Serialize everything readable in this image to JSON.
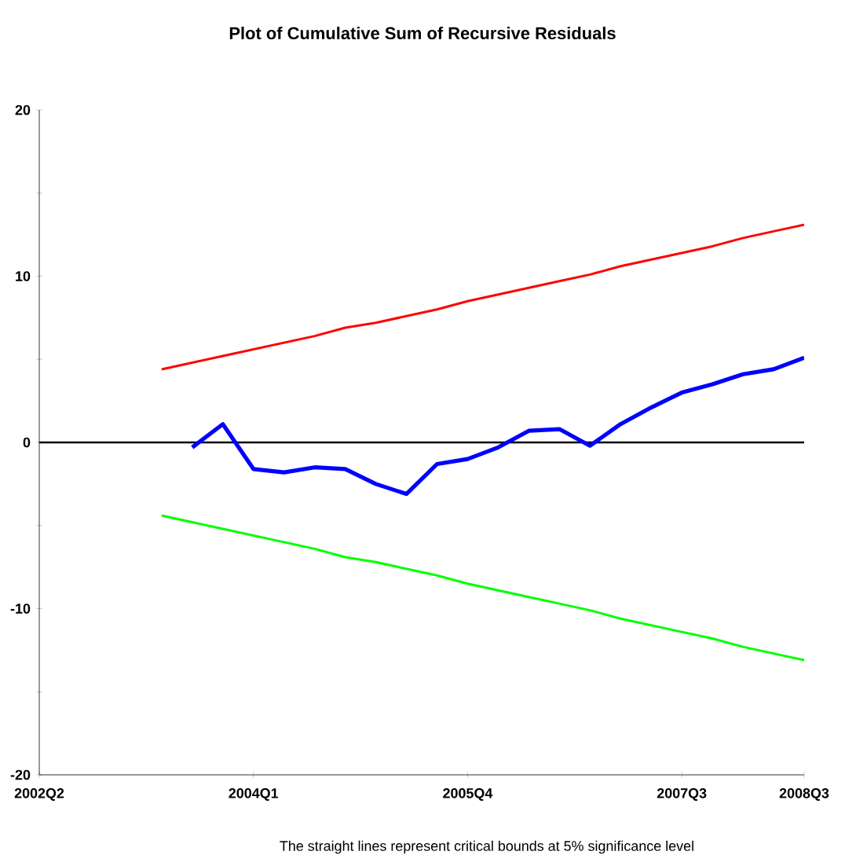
{
  "chart_data": {
    "type": "line",
    "title": "Plot of Cumulative Sum of Recursive Residuals",
    "annotations": [
      "The straight lines represent critical bounds at 5% significance level"
    ],
    "categories": [
      "2002Q2",
      null,
      null,
      null,
      null,
      null,
      null,
      "2004Q1",
      null,
      null,
      null,
      null,
      null,
      null,
      "2005Q4",
      null,
      null,
      null,
      null,
      null,
      null,
      "2007Q3",
      null,
      null,
      null,
      "2008Q3"
    ],
    "ylim": [
      -20,
      20
    ],
    "yticks": [
      -20,
      {
        "value": -15,
        "label": null
      },
      -10,
      {
        "value": -5,
        "label": null
      },
      0,
      {
        "value": 5,
        "label": null
      },
      10,
      {
        "value": 15,
        "label": null
      },
      20
    ],
    "grid": false,
    "marker": "none",
    "line_style": "solid",
    "ref_lines": [
      {
        "axis": "y",
        "value": 0,
        "color": "#000000"
      }
    ],
    "series": [
      {
        "color": "#0000ff",
        "values": [
          null,
          null,
          null,
          null,
          null,
          -0.3,
          1.1,
          -1.6,
          -1.8,
          -1.5,
          -1.6,
          -2.5,
          -3.1,
          -1.3,
          -1.0,
          -0.3,
          0.7,
          0.8,
          -0.2,
          1.1,
          2.1,
          3.0,
          3.5,
          4.1,
          4.4,
          5.1
        ]
      },
      {
        "color": "#ff0000",
        "values": [
          null,
          null,
          null,
          null,
          4.4,
          4.8,
          5.2,
          5.6,
          6.0,
          6.4,
          6.9,
          7.2,
          7.6,
          8.0,
          8.5,
          8.9,
          9.3,
          9.7,
          10.1,
          10.6,
          11.0,
          11.4,
          11.8,
          12.3,
          12.7,
          13.1
        ]
      },
      {
        "color": "#00ff00",
        "values": [
          null,
          null,
          null,
          null,
          -4.4,
          -4.8,
          -5.2,
          -5.6,
          -6.0,
          -6.4,
          -6.9,
          -7.2,
          -7.6,
          -8.0,
          -8.5,
          -8.9,
          -9.3,
          -9.7,
          -10.1,
          -10.6,
          -11.0,
          -11.4,
          -11.8,
          -12.3,
          -12.7,
          -13.1
        ]
      }
    ]
  }
}
